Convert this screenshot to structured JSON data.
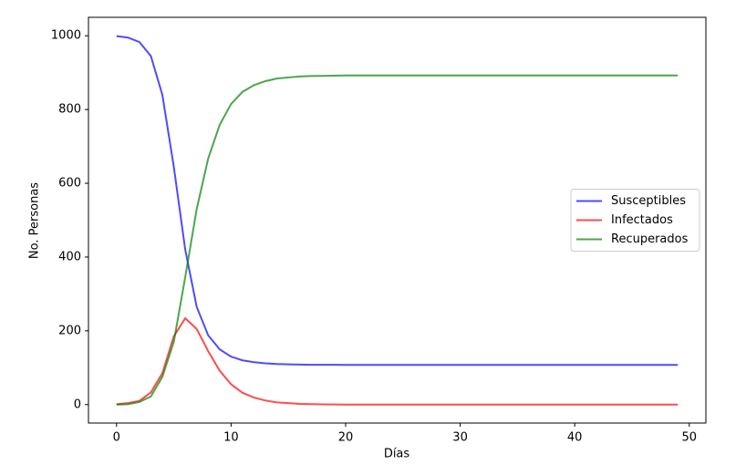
{
  "chart_data": {
    "type": "line",
    "xlabel": "Días",
    "ylabel": "No. Personas",
    "x": [
      0,
      1,
      2,
      3,
      4,
      5,
      6,
      7,
      8,
      9,
      10,
      11,
      12,
      13,
      14,
      15,
      16,
      17,
      18,
      19,
      20,
      21,
      22,
      23,
      24,
      25,
      26,
      27,
      28,
      29,
      30,
      31,
      32,
      33,
      34,
      35,
      36,
      37,
      38,
      39,
      40,
      41,
      42,
      43,
      44,
      45,
      46,
      47,
      48,
      49
    ],
    "series": [
      {
        "name": "Susceptibles",
        "color": "blue",
        "values": [
          999,
          995,
          983,
          945,
          840,
          645,
          420,
          265,
          188,
          150,
          130,
          120,
          115,
          112,
          110,
          109,
          108.5,
          108,
          108,
          107.8,
          107.5,
          107.5,
          107.5,
          107.5,
          107.5,
          107.5,
          107.5,
          107.5,
          107.5,
          107.5,
          107.5,
          107.5,
          107.5,
          107.5,
          107.5,
          107.5,
          107.5,
          107.5,
          107.5,
          107.5,
          107.5,
          107.5,
          107.5,
          107.5,
          107.5,
          107.5,
          107.5,
          107.5,
          107.5,
          107.5
        ]
      },
      {
        "name": "Infectados",
        "color": "red",
        "values": [
          1,
          4,
          10,
          33,
          85,
          185,
          234,
          205,
          145,
          92,
          55,
          32,
          19,
          11,
          6,
          4,
          2,
          1.2,
          0.7,
          0.4,
          0.2,
          0.1,
          0,
          0,
          0,
          0,
          0,
          0,
          0,
          0,
          0,
          0,
          0,
          0,
          0,
          0,
          0,
          0,
          0,
          0,
          0,
          0,
          0,
          0,
          0,
          0,
          0,
          0,
          0,
          0
        ]
      },
      {
        "name": "Recuperados",
        "color": "green",
        "values": [
          0,
          1,
          7,
          22,
          75,
          170,
          346,
          530,
          667,
          758,
          815,
          848,
          866,
          877,
          884,
          887,
          889.5,
          890.8,
          891.3,
          891.8,
          892.5,
          892.5,
          892.5,
          892.5,
          892.5,
          892.5,
          892.5,
          892.5,
          892.5,
          892.5,
          892.5,
          892.5,
          892.5,
          892.5,
          892.5,
          892.5,
          892.5,
          892.5,
          892.5,
          892.5,
          892.5,
          892.5,
          892.5,
          892.5,
          892.5,
          892.5,
          892.5,
          892.5,
          892.5,
          892.5
        ]
      }
    ],
    "alpha": 0.7,
    "xlim": [
      -2.45,
      51.45
    ],
    "ylim": [
      -50,
      1050
    ],
    "xticks": [
      0,
      10,
      20,
      30,
      40,
      50
    ],
    "yticks": [
      0,
      200,
      400,
      600,
      800,
      1000
    ],
    "legend": "center right",
    "grid": false
  }
}
